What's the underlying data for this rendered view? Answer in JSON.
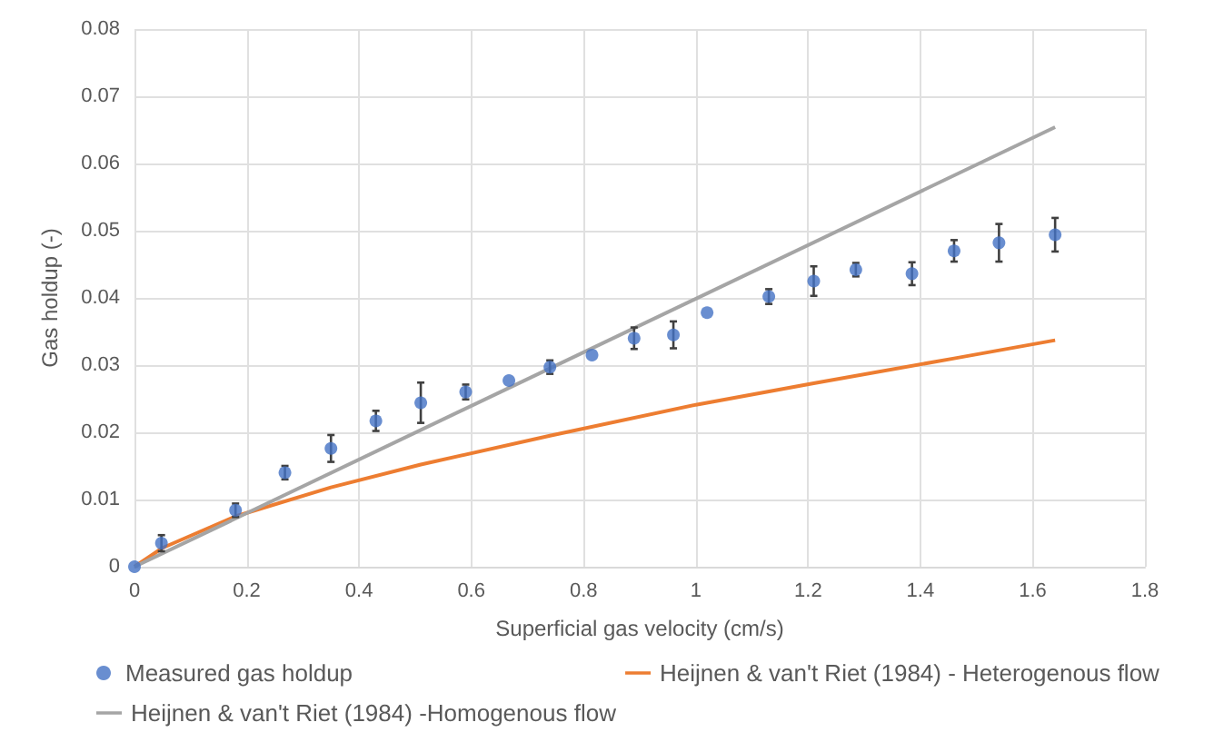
{
  "chart_data": {
    "type": "scatter",
    "xlabel": "Superficial gas velocity (cm/s)",
    "ylabel": "Gas holdup (-)",
    "xlim": [
      0,
      1.8
    ],
    "xticks": [
      0,
      0.2,
      0.4,
      0.6,
      0.8,
      1,
      1.2,
      1.4,
      1.6,
      1.8
    ],
    "ylim": [
      0,
      0.08
    ],
    "yticks": [
      0,
      0.01,
      0.02,
      0.03,
      0.04,
      0.05,
      0.06,
      0.07,
      0.08
    ],
    "grid": true,
    "legend": "bottom",
    "series": [
      {
        "name": "Measured gas holdup",
        "marker": "circle",
        "color": "#4472c4",
        "x": [
          0,
          0.048,
          0.18,
          0.268,
          0.35,
          0.43,
          0.51,
          0.59,
          0.667,
          0.74,
          0.815,
          0.89,
          0.96,
          1.02,
          1.13,
          1.21,
          1.285,
          1.385,
          1.46,
          1.54,
          1.64
        ],
        "values": [
          0,
          0.0035,
          0.0084,
          0.014,
          0.0176,
          0.0217,
          0.0244,
          0.026,
          0.0277,
          0.0297,
          0.0315,
          0.034,
          0.0345,
          0.0378,
          0.0402,
          0.0425,
          0.0442,
          0.0436,
          0.047,
          0.0482,
          0.0494
        ],
        "errors": [
          null,
          0.0012,
          0.001,
          0.001,
          0.002,
          0.0015,
          0.003,
          0.0011,
          null,
          0.001,
          null,
          0.0016,
          0.002,
          null,
          0.0011,
          0.0022,
          0.001,
          0.0017,
          0.0016,
          0.0028,
          0.0025
        ]
      },
      {
        "name": "Heijnen & van't Riet (1984) - Heterogenous flow",
        "type": "line",
        "color": "#ed7d31",
        "x": [
          0,
          0.05,
          0.18,
          0.35,
          0.51,
          0.74,
          1.0,
          1.21,
          1.46,
          1.64
        ],
        "values": [
          0,
          0.0028,
          0.0075,
          0.0118,
          0.0152,
          0.0195,
          0.0241,
          0.0273,
          0.031,
          0.0337
        ]
      },
      {
        "name": "Heijnen & van't Riet (1984) -Homogenous flow",
        "type": "line",
        "color": "#a5a5a5",
        "x": [
          0,
          1.64
        ],
        "values": [
          0,
          0.0654
        ]
      }
    ]
  }
}
